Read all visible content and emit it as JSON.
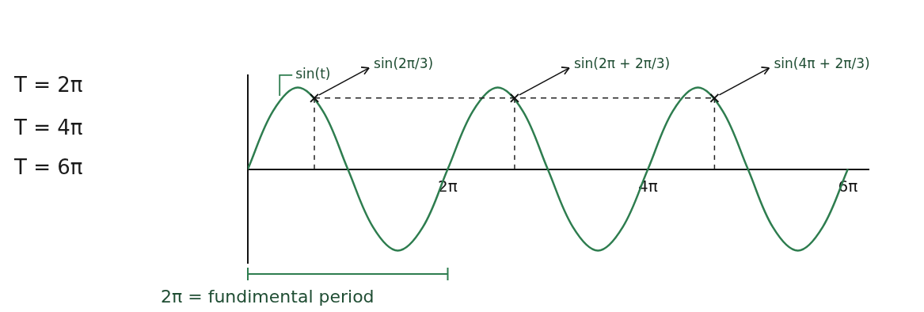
{
  "chart_data": {
    "type": "line",
    "color": "#2e7d4f",
    "x": [
      0,
      0.79,
      1.57,
      2.36,
      3.14,
      3.93,
      4.71,
      5.5,
      6.28,
      7.07,
      7.85,
      8.64,
      9.42,
      10.21,
      11,
      11.78,
      12.57,
      13.35,
      14.14,
      14.92,
      15.71,
      16.49,
      17.28,
      18.06,
      18.85
    ],
    "values": [
      0,
      0.71,
      1,
      0.71,
      0,
      -0.71,
      -1,
      -0.71,
      0,
      0.71,
      1,
      0.71,
      0,
      -0.71,
      -1,
      -0.71,
      0,
      0.71,
      1,
      0.71,
      0,
      -0.71,
      -1,
      -0.71,
      0
    ],
    "xlim": [
      0,
      19.5
    ],
    "xticks": [
      {
        "value": 6.28,
        "label": "2π"
      },
      {
        "value": 12.57,
        "label": "4π"
      },
      {
        "value": 18.85,
        "label": "6π"
      }
    ],
    "ylim": [
      -1.15,
      1.15
    ],
    "tick_labels": "x",
    "grid": false,
    "annotations": [
      {
        "text": "sin(t)",
        "x": 1.0,
        "y": 0.84
      },
      {
        "text": "sin(2π/3)",
        "x": 2.09,
        "y": 0.87
      },
      {
        "text": "sin(2π + 2π/3)",
        "x": 8.38,
        "y": 0.87
      },
      {
        "text": "sin(4π + 2π/3)",
        "x": 14.66,
        "y": 0.87
      }
    ],
    "side_notes": [
      "T = 2π",
      "T = 4π",
      "T = 6π"
    ],
    "period": {
      "text": "2π = fundimental period",
      "from": 0,
      "to": 6.28
    }
  }
}
